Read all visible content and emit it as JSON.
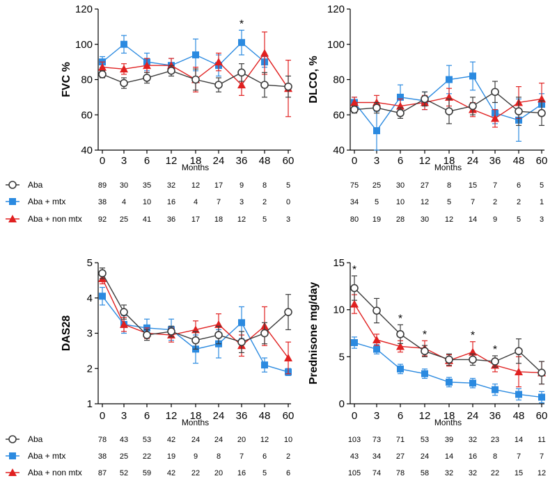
{
  "months_label": "Months",
  "legend": [
    "Aba",
    "Aba + mtx",
    "Aba + non mtx"
  ],
  "colors": {
    "aba": "#3a3a3a",
    "mtx": "#2b8ae0",
    "nonmtx": "#e02020"
  },
  "chart_data": [
    {
      "type": "line",
      "ylabel": "FVC %",
      "xlabel": "Months",
      "categories": [
        "0",
        "3",
        "6",
        "12",
        "18",
        "24",
        "36",
        "48",
        "60"
      ],
      "ylim": [
        40,
        120
      ],
      "yticks": [
        "40",
        "60",
        "80",
        "100",
        "120"
      ],
      "series": [
        {
          "name": "Aba",
          "values": [
            83,
            78,
            81,
            85,
            80,
            77,
            84,
            77,
            76
          ],
          "err": [
            2,
            3,
            3,
            3,
            6,
            4,
            5,
            7,
            6
          ]
        },
        {
          "name": "Aba + mtx",
          "values": [
            90,
            100,
            90,
            88,
            94,
            88,
            101,
            90,
            null
          ],
          "err": [
            3,
            5,
            5,
            4,
            9,
            6,
            7,
            3,
            null
          ]
        },
        {
          "name": "Aba + non mtx",
          "values": [
            87,
            86,
            88,
            88,
            80,
            90,
            77,
            95,
            75
          ],
          "err": [
            3,
            3,
            4,
            4,
            7,
            5,
            6,
            12,
            16
          ]
        }
      ],
      "asterisks": [
        {
          "x": "36",
          "text": "*"
        }
      ],
      "counts": [
        [
          "89",
          "30",
          "35",
          "32",
          "12",
          "17",
          "9",
          "8",
          "5"
        ],
        [
          "38",
          "4",
          "10",
          "16",
          "4",
          "7",
          "3",
          "2",
          "0"
        ],
        [
          "92",
          "25",
          "41",
          "36",
          "17",
          "18",
          "12",
          "5",
          "3"
        ]
      ]
    },
    {
      "type": "line",
      "ylabel": "DLCO, %",
      "xlabel": "Months",
      "categories": [
        "0",
        "3",
        "6",
        "12",
        "18",
        "24",
        "36",
        "48",
        "60"
      ],
      "ylim": [
        40,
        120
      ],
      "yticks": [
        "40",
        "60",
        "80",
        "100",
        "120"
      ],
      "series": [
        {
          "name": "Aba",
          "values": [
            63,
            64,
            61,
            69,
            62,
            65,
            73,
            62,
            61
          ],
          "err": [
            2,
            3,
            3,
            4,
            7,
            5,
            6,
            8,
            7
          ]
        },
        {
          "name": "Aba + mtx",
          "values": [
            67,
            51,
            70,
            68,
            80,
            82,
            61,
            57,
            66
          ],
          "err": [
            3,
            11,
            7,
            5,
            8,
            8,
            6,
            12,
            6
          ]
        },
        {
          "name": "Aba + non mtx",
          "values": [
            67,
            67,
            65,
            67,
            70,
            63,
            58,
            67,
            69
          ],
          "err": [
            3,
            4,
            4,
            4,
            5,
            4,
            5,
            9,
            9
          ]
        }
      ],
      "asterisks": [],
      "counts": [
        [
          "75",
          "25",
          "30",
          "27",
          "8",
          "15",
          "7",
          "6",
          "5"
        ],
        [
          "34",
          "5",
          "10",
          "12",
          "5",
          "7",
          "2",
          "2",
          "1"
        ],
        [
          "80",
          "19",
          "28",
          "30",
          "12",
          "14",
          "9",
          "5",
          "3"
        ]
      ]
    },
    {
      "type": "line",
      "ylabel": "DAS28",
      "xlabel": "Months",
      "categories": [
        "0",
        "3",
        "6",
        "12",
        "18",
        "24",
        "36",
        "48",
        "60"
      ],
      "ylim": [
        1,
        5
      ],
      "yticks": [
        "1",
        "2",
        "3",
        "4",
        "5"
      ],
      "series": [
        {
          "name": "Aba",
          "values": [
            4.7,
            3.6,
            2.95,
            3.05,
            2.8,
            2.95,
            2.75,
            3.0,
            3.6
          ],
          "err": [
            0.15,
            0.2,
            0.15,
            0.15,
            0.25,
            0.25,
            0.3,
            0.3,
            0.5
          ]
        },
        {
          "name": "Aba + mtx",
          "values": [
            4.05,
            3.25,
            3.15,
            3.1,
            2.55,
            2.7,
            3.3,
            2.1,
            1.9
          ],
          "err": [
            0.25,
            0.25,
            0.25,
            0.3,
            0.4,
            0.4,
            0.45,
            0.2,
            0.1
          ]
        },
        {
          "name": "Aba + non mtx",
          "values": [
            4.55,
            3.25,
            3.0,
            2.95,
            3.1,
            3.25,
            2.65,
            3.2,
            2.3
          ],
          "err": [
            0.15,
            0.2,
            0.15,
            0.2,
            0.25,
            0.3,
            0.3,
            0.55,
            0.45
          ]
        }
      ],
      "asterisks": [],
      "counts": [
        [
          "78",
          "43",
          "53",
          "42",
          "24",
          "24",
          "20",
          "12",
          "10"
        ],
        [
          "38",
          "25",
          "22",
          "19",
          "9",
          "8",
          "7",
          "6",
          "2"
        ],
        [
          "87",
          "52",
          "59",
          "42",
          "22",
          "20",
          "16",
          "5",
          "6"
        ]
      ]
    },
    {
      "type": "line",
      "ylabel": "Prednisone mg/day",
      "xlabel": "Months",
      "categories": [
        "0",
        "3",
        "6",
        "12",
        "18",
        "24",
        "36",
        "48",
        "60"
      ],
      "ylim": [
        0,
        15
      ],
      "yticks": [
        "0",
        "5",
        "10",
        "15"
      ],
      "series": [
        {
          "name": "Aba",
          "values": [
            12.3,
            9.9,
            7.4,
            5.6,
            4.7,
            4.7,
            4.5,
            5.6,
            3.3
          ],
          "err": [
            1.3,
            1.3,
            1.0,
            0.6,
            0.6,
            0.6,
            0.6,
            1.3,
            1.2
          ]
        },
        {
          "name": "Aba + mtx",
          "values": [
            6.5,
            5.8,
            3.7,
            3.2,
            2.3,
            2.2,
            1.5,
            1.0,
            0.7
          ],
          "err": [
            0.6,
            0.5,
            0.5,
            0.5,
            0.5,
            0.5,
            0.6,
            0.6,
            0.6
          ]
        },
        {
          "name": "Aba + non mtx",
          "values": [
            10.6,
            6.8,
            6.1,
            5.9,
            4.6,
            5.5,
            4.1,
            3.4,
            3.3
          ],
          "err": [
            1.0,
            0.6,
            0.6,
            0.8,
            0.6,
            1.1,
            0.7,
            1.6,
            1.2
          ]
        }
      ],
      "asterisks": [
        {
          "x": "0",
          "text": "*"
        },
        {
          "x": "6",
          "text": "*"
        },
        {
          "x": "12",
          "text": "*"
        },
        {
          "x": "24",
          "text": "*"
        },
        {
          "x": "36",
          "text": "*"
        }
      ],
      "counts": [
        [
          "103",
          "73",
          "71",
          "53",
          "39",
          "32",
          "23",
          "14",
          "11"
        ],
        [
          "43",
          "34",
          "27",
          "24",
          "14",
          "16",
          "8",
          "7",
          "7"
        ],
        [
          "105",
          "74",
          "78",
          "58",
          "32",
          "32",
          "22",
          "15",
          "12"
        ]
      ]
    }
  ]
}
